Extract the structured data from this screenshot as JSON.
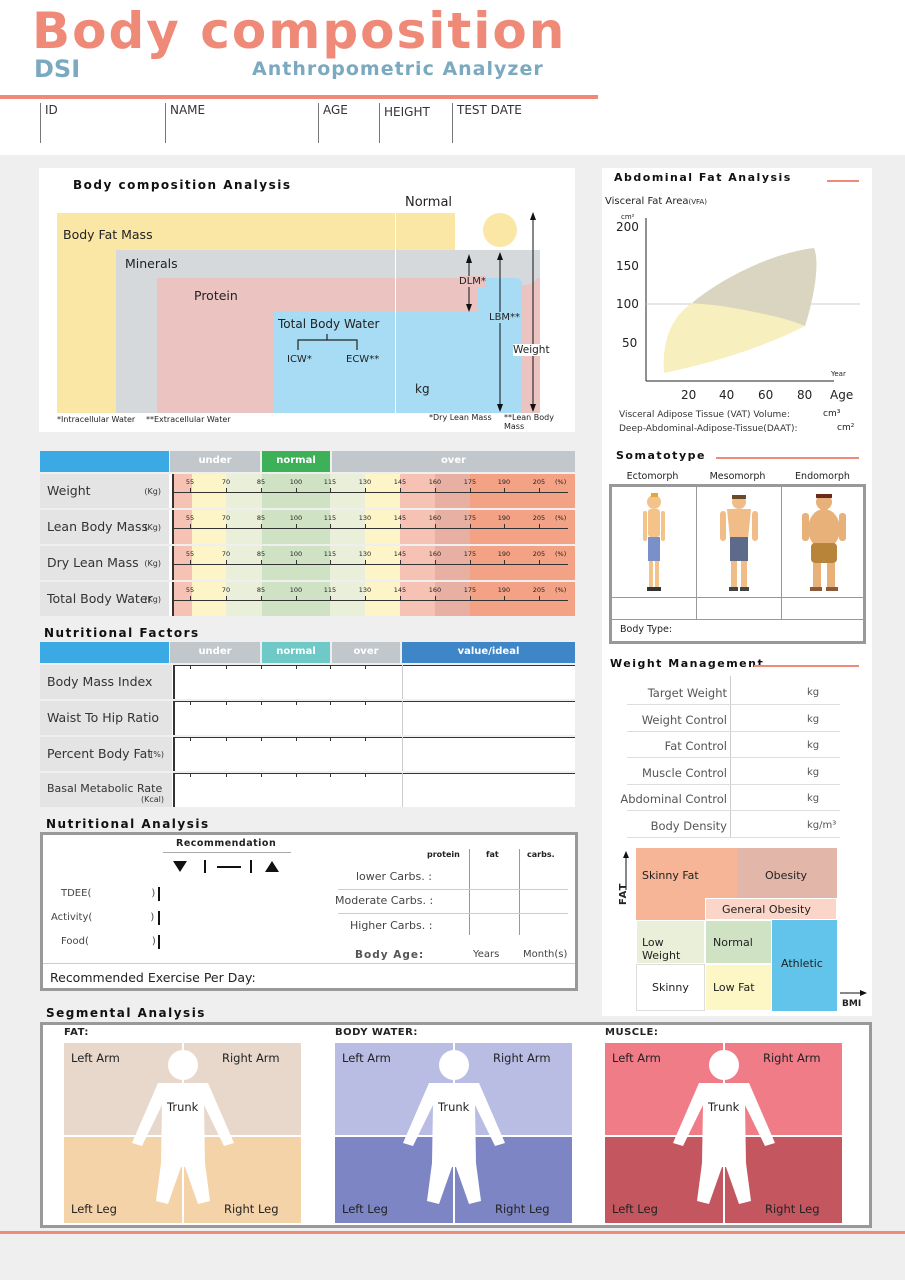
{
  "header": {
    "title": "Body composition",
    "brand": "DSI",
    "subtitle": "Anthropometric Analyzer",
    "fields": [
      "ID",
      "NAME",
      "AGE",
      "HEIGHT",
      "TEST DATE"
    ]
  },
  "bca": {
    "title": "Body composition Analysis",
    "normal": "Normal",
    "body_fat_mass": "Body Fat Mass",
    "minerals": "Minerals",
    "protein": "Protein",
    "tbw": "Total Body Water",
    "icw": "ICW*",
    "ecw": "ECW**",
    "kg": "kg",
    "dlm": "DLM*",
    "lbm": "LBM**",
    "weight": "Weight",
    "fn_icw": "*Intracellular Water",
    "fn_ecw": "**Extracellular Water",
    "fn_dlm": "*Dry Lean Mass",
    "fn_lbm": "**Lean Body Mass"
  },
  "range_chart": {
    "header": [
      "under",
      "normal",
      "over"
    ],
    "ticks": [
      "55",
      "70",
      "85",
      "100",
      "115",
      "130",
      "145",
      "160",
      "175",
      "190",
      "205"
    ],
    "pct": "(%)",
    "rows": [
      {
        "label": "Weight",
        "unit": "(Kg)"
      },
      {
        "label": "Lean Body Mass",
        "unit": "(Kg)"
      },
      {
        "label": "Dry Lean Mass",
        "unit": "(Kg)"
      },
      {
        "label": "Total Body Water",
        "unit": "(Kg)"
      }
    ]
  },
  "nutritional_factors": {
    "title": "Nutritional Factors",
    "header": [
      "under",
      "normal",
      "over",
      "value/ideal"
    ],
    "rows": [
      {
        "label": "Body Mass Index",
        "unit": ""
      },
      {
        "label": "Waist To Hip Ratio",
        "unit": ""
      },
      {
        "label": "Percent Body Fat",
        "unit": "(%)"
      },
      {
        "label": "Basal Metabolic Rate",
        "unit": "(Kcal)"
      }
    ]
  },
  "nutritional_analysis": {
    "title": "Nutritional Analysis",
    "recommendation": "Recommendation",
    "tdee": "TDEE(",
    "activity": "Activity(",
    "food": "Food(",
    "close": ")",
    "cols": [
      "protein",
      "fat",
      "carbs."
    ],
    "carbs_rows": [
      "lower Carbs. :",
      "Moderate Carbs. :",
      "Higher Carbs. :"
    ],
    "body_age": "Body Age",
    "colon": ":",
    "years": "Years",
    "months": "Month(s)",
    "exercise": "Recommended Exercise Per Day:"
  },
  "abdominal": {
    "title": "Abdominal Fat Analysis",
    "vfa_label": "Visceral Fat Area",
    "vfa_sub": "(VFA)",
    "cm2": "cm²",
    "yticks": [
      "200",
      "150",
      "100",
      "50"
    ],
    "xticks": [
      "20",
      "40",
      "60",
      "80"
    ],
    "year": "Year",
    "age": "Age",
    "vat": "Visceral Adipose Tissue (VAT) Volume:",
    "vat_unit": "cm³",
    "daat": "Deep-Abdominal-Adipose-Tissue(DAAT):",
    "daat_unit": "cm²"
  },
  "somatotype": {
    "title": "Somatotype",
    "types": [
      "Ectomorph",
      "Mesomorph",
      "Endomorph"
    ],
    "body_type": "Body Type:"
  },
  "weight_management": {
    "title": "Weight Management",
    "rows": [
      {
        "label": "Target Weight",
        "unit": "kg"
      },
      {
        "label": "Weight Control",
        "unit": "kg"
      },
      {
        "label": "Fat Control",
        "unit": "kg"
      },
      {
        "label": "Muscle Control",
        "unit": "kg"
      },
      {
        "label": "Abdominal Control",
        "unit": "kg"
      },
      {
        "label": "Body Density",
        "unit": "kg/m³"
      }
    ]
  },
  "body_matrix": {
    "fat_axis": "FAT",
    "bmi_axis": "BMI",
    "cells": {
      "skinny_fat": "Skinny Fat",
      "obesity": "Obesity",
      "general_obesity": "General Obesity",
      "low_weight": "Low Weight",
      "normal": "Normal",
      "athletic": "Athletic",
      "skinny": "Skinny",
      "low_fat": "Low Fat"
    }
  },
  "segmental": {
    "title": "Segmental Analysis",
    "groups": [
      {
        "name": "FAT:",
        "top": "#e8d8cc",
        "bottom": "#f5d3a8"
      },
      {
        "name": "BODY WATER:",
        "top": "#b9bde4",
        "bottom": "#7d85c4"
      },
      {
        "name": "MUSCLE:",
        "top": "#f07c88",
        "bottom": "#c45660"
      }
    ],
    "left_arm": "Left Arm",
    "right_arm": "Right Arm",
    "trunk": "Trunk",
    "left_leg": "Left Leg",
    "right_leg": "Right Leg"
  }
}
